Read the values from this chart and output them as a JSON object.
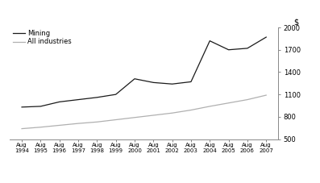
{
  "years": [
    1994,
    1995,
    1996,
    1997,
    1998,
    1999,
    2000,
    2001,
    2002,
    2003,
    2004,
    2005,
    2006,
    2007
  ],
  "mining": [
    930,
    940,
    1000,
    1030,
    1060,
    1100,
    1310,
    1260,
    1240,
    1270,
    1820,
    1700,
    1720,
    1870
  ],
  "all_industries": [
    640,
    660,
    685,
    710,
    730,
    760,
    790,
    820,
    850,
    890,
    940,
    985,
    1030,
    1090
  ],
  "ylim": [
    500,
    2000
  ],
  "yticks": [
    500,
    800,
    1100,
    1400,
    1700,
    2000
  ],
  "mining_color": "#1a1a1a",
  "all_industries_color": "#b0b0b0",
  "legend_mining": "Mining",
  "legend_all": "All industries",
  "dollar_label": "$",
  "linewidth": 0.9
}
